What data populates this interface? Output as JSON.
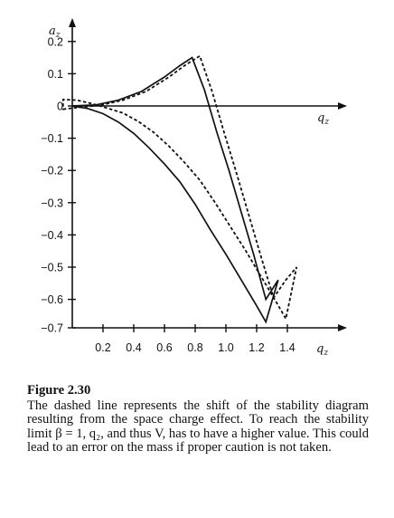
{
  "chart_data": {
    "type": "line",
    "title": "",
    "x_axis_label": "q_z",
    "y_axis_label": "a_z",
    "xlim": [
      0,
      1.6
    ],
    "ylim": [
      -0.7,
      0.2
    ],
    "x_ticks": [
      "0.2",
      "0.4",
      "0.6",
      "0.8",
      "1.0",
      "1.2",
      "1.4"
    ],
    "y_ticks": [
      "0.2",
      "0.1",
      "0",
      "−0.1",
      "−0.2",
      "−0.3",
      "−0.4",
      "−0.5",
      "−0.6",
      "−0.7"
    ],
    "grid": false,
    "legend": "none",
    "series": [
      {
        "style": "solid",
        "x": [
          0.0,
          0.15,
          0.3,
          0.45,
          0.6,
          0.7,
          0.78,
          0.86,
          0.94,
          1.02,
          1.1,
          1.18,
          1.26,
          1.34,
          1.26,
          1.2,
          1.1,
          1.0,
          0.9,
          0.8,
          0.7,
          0.6,
          0.5,
          0.4,
          0.3,
          0.2,
          0.1,
          0.0
        ],
        "y": [
          0.0,
          0.003,
          0.018,
          0.045,
          0.09,
          0.125,
          0.15,
          0.05,
          -0.08,
          -0.2,
          -0.33,
          -0.46,
          -0.6,
          -0.54,
          -0.67,
          -0.62,
          -0.54,
          -0.46,
          -0.385,
          -0.305,
          -0.235,
          -0.18,
          -0.13,
          -0.085,
          -0.05,
          -0.024,
          -0.008,
          0.0
        ]
      },
      {
        "style": "dashed",
        "x": [
          -0.06,
          0.03,
          0.18,
          0.33,
          0.48,
          0.63,
          0.73,
          0.83,
          0.91,
          0.99,
          1.07,
          1.15,
          1.23,
          1.31,
          1.39,
          1.46,
          1.39,
          1.33,
          1.23,
          1.13,
          1.03,
          0.93,
          0.83,
          0.73,
          0.63,
          0.53,
          0.43,
          0.33,
          0.23,
          0.13,
          0.03,
          -0.06
        ],
        "y": [
          -0.01,
          -0.005,
          0.002,
          0.018,
          0.045,
          0.09,
          0.125,
          0.155,
          0.045,
          -0.085,
          -0.21,
          -0.34,
          -0.47,
          -0.595,
          -0.54,
          -0.5,
          -0.66,
          -0.61,
          -0.53,
          -0.45,
          -0.375,
          -0.3,
          -0.23,
          -0.175,
          -0.125,
          -0.082,
          -0.048,
          -0.022,
          -0.007,
          0.007,
          0.018,
          0.02
        ]
      }
    ]
  },
  "caption": {
    "title": "Figure 2.30",
    "body": "The dashed line represents the shift of the stability diagram resulting from the space charge effect. To reach the stability limit β = 1, q₂, and thus V, has to have a higher value. This could lead to an error on the mass if proper caution is not taken."
  }
}
